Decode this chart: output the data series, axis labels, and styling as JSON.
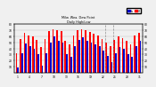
{
  "title": "Milw. Wea. Dew Point",
  "subtitle": "Daily High/Low",
  "bar_width": 0.38,
  "background_color": "#f0f0f0",
  "high_color": "#ff0000",
  "low_color": "#0000cc",
  "ylim": [
    0,
    80
  ],
  "yticks": [
    10,
    20,
    30,
    40,
    50,
    60,
    70,
    80
  ],
  "n_bars": 31,
  "xtick_step": 3,
  "high": [
    32,
    55,
    65,
    62,
    60,
    54,
    42,
    56,
    68,
    72,
    70,
    68,
    52,
    46,
    62,
    70,
    72,
    70,
    67,
    64,
    62,
    56,
    50,
    44,
    54,
    60,
    57,
    52,
    46,
    62,
    66
  ],
  "low": [
    8,
    32,
    48,
    44,
    40,
    30,
    12,
    32,
    50,
    60,
    52,
    50,
    30,
    26,
    44,
    54,
    58,
    52,
    50,
    46,
    44,
    36,
    28,
    18,
    32,
    42,
    40,
    30,
    26,
    44,
    52
  ],
  "dashed_lines": [
    21.5,
    23.5
  ],
  "legend_labels": [
    "Lo",
    "Hi"
  ]
}
